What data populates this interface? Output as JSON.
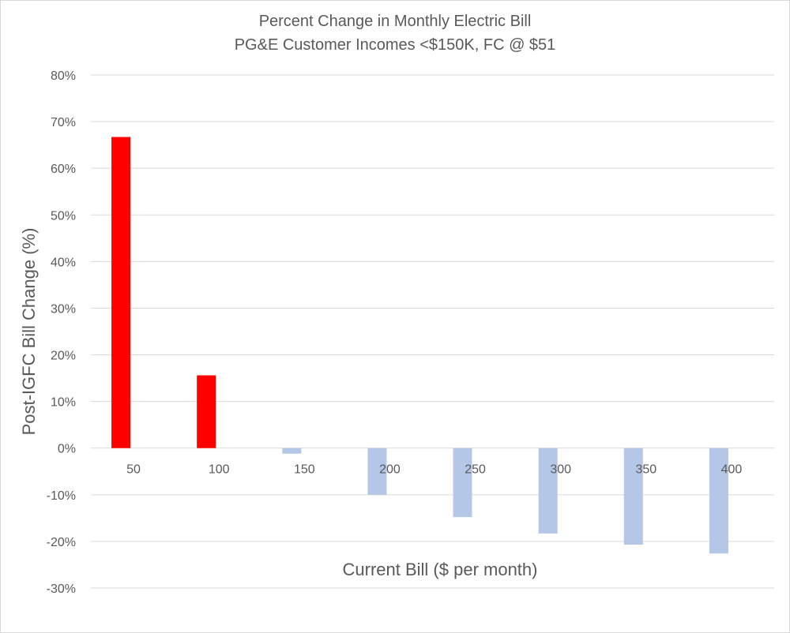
{
  "chart_data": {
    "type": "bar",
    "title": "Percent Change in Monthly Electric Bill",
    "subtitle": "PG&E Customer Incomes <$150K, FC @ $51",
    "xlabel": "Current Bill ($ per month)",
    "ylabel": "Post-IGFC Bill Change (%)",
    "categories": [
      "50",
      "100",
      "150",
      "200",
      "250",
      "300",
      "350",
      "400"
    ],
    "values": [
      66.7,
      15.6,
      -1.2,
      -10.0,
      -14.8,
      -18.3,
      -20.7,
      -22.6
    ],
    "ylim": [
      -30,
      80
    ],
    "yticks": [
      "80%",
      "70%",
      "60%",
      "50%",
      "40%",
      "30%",
      "20%",
      "10%",
      "0%",
      "-10%",
      "-20%",
      "-30%"
    ],
    "ytick_values": [
      80,
      70,
      60,
      50,
      40,
      30,
      20,
      10,
      0,
      -10,
      -20,
      -30
    ],
    "grid": true,
    "colors": {
      "increase": "#ff0000",
      "decrease": "#b4c7e7",
      "grid": "#d9d9d9",
      "text": "#595959"
    }
  }
}
